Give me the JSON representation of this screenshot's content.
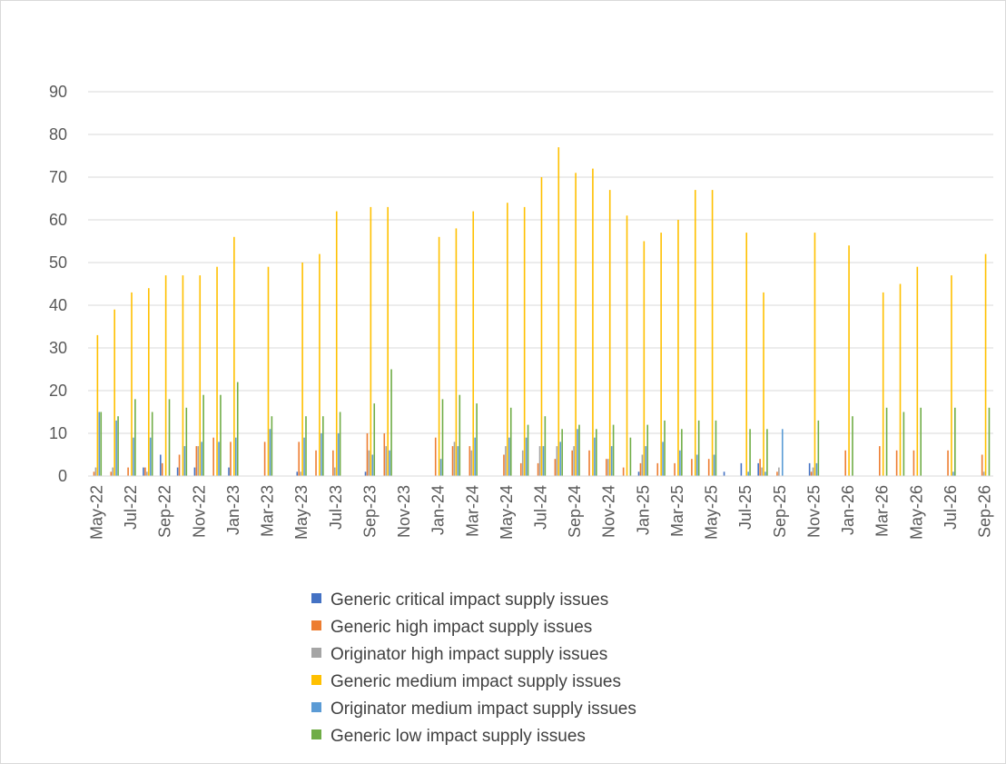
{
  "chart_data": {
    "type": "bar",
    "title": "",
    "xlabel": "",
    "ylabel": "",
    "ylim": [
      0,
      90
    ],
    "yticks": [
      0,
      10,
      20,
      30,
      40,
      50,
      60,
      70,
      80,
      90
    ],
    "grid": true,
    "legend_position": "bottom",
    "categories": [
      "May-22",
      "Jun-22",
      "Jul-22",
      "Aug-22",
      "Sep-22",
      "Oct-22",
      "Nov-22",
      "Dec-22",
      "Jan-23",
      "Feb-23",
      "Mar-23",
      "Apr-23",
      "May-23",
      "Jun-23",
      "Jul-23",
      "Aug-23",
      "Sep-23",
      "Oct-23",
      "Nov-23",
      "Dec-23",
      "Jan-24",
      "Feb-24",
      "Mar-24",
      "Apr-24",
      "May-24",
      "Jun-24",
      "Jul-24",
      "Aug-24",
      "Sep-24",
      "Oct-24",
      "Nov-24",
      "Dec-24",
      "Jan-25",
      "Feb-25",
      "Mar-25",
      "Apr-25",
      "May-25",
      "Jun-25",
      "Jul-25",
      "Aug-25",
      "Sep-25",
      "Oct-25",
      "Nov-25",
      "Dec-25",
      "Jan-26",
      "Feb-26",
      "Mar-26",
      "Apr-26",
      "May-26",
      "Jun-26",
      "Jul-26",
      "Aug-26",
      "Sep-26"
    ],
    "tick_labels": [
      "May-22",
      "Jul-22",
      "Sep-22",
      "Nov-22",
      "Jan-23",
      "Mar-23",
      "May-23",
      "Jul-23",
      "Sep-23",
      "Nov-23",
      "Jan-24",
      "Mar-24",
      "May-24",
      "Jul-24",
      "Sep-24",
      "Nov-24",
      "Jan-25",
      "Mar-25",
      "May-25",
      "Jul-25",
      "Sep-25",
      "Nov-25",
      "Jan-26",
      "Mar-26",
      "May-26",
      "Jul-26",
      "Sep-26"
    ],
    "series": [
      {
        "name": "Generic critical impact supply issues",
        "color": "#4472c4",
        "values": [
          0,
          0,
          0,
          2,
          5,
          2,
          2,
          0,
          2,
          0,
          0,
          0,
          1,
          0,
          0,
          0,
          1,
          0,
          0,
          0,
          0,
          0,
          0,
          0,
          0,
          0,
          0,
          0,
          0,
          0,
          0,
          0,
          1,
          0,
          0,
          0,
          0,
          1,
          3,
          3,
          0,
          0,
          3,
          0,
          0,
          0,
          0,
          0,
          0,
          0,
          0,
          0,
          0
        ]
      },
      {
        "name": "Generic high impact supply issues",
        "color": "#ed7d31",
        "values": [
          1,
          1,
          2,
          2,
          3,
          5,
          7,
          9,
          8,
          0,
          8,
          0,
          8,
          6,
          6,
          0,
          10,
          10,
          0,
          0,
          9,
          7,
          7,
          0,
          5,
          3,
          3,
          4,
          6,
          6,
          4,
          2,
          3,
          3,
          3,
          4,
          4,
          0,
          0,
          4,
          1,
          0,
          1,
          0,
          6,
          0,
          7,
          6,
          6,
          0,
          6,
          0,
          5
        ]
      },
      {
        "name": "Originator high impact supply issues",
        "color": "#a5a5a5",
        "values": [
          2,
          2,
          0,
          1,
          0,
          0,
          7,
          0,
          0,
          0,
          0,
          0,
          1,
          0,
          2,
          0,
          6,
          7,
          0,
          0,
          0,
          8,
          6,
          0,
          7,
          6,
          7,
          7,
          7,
          0,
          4,
          0,
          5,
          0,
          0,
          0,
          0,
          0,
          0,
          2,
          2,
          0,
          2,
          0,
          0,
          0,
          0,
          0,
          0,
          0,
          0,
          0,
          1
        ]
      },
      {
        "name": "Generic medium impact supply issues",
        "color": "#ffc000",
        "values": [
          33,
          39,
          43,
          44,
          47,
          47,
          47,
          49,
          56,
          0,
          49,
          0,
          50,
          52,
          62,
          0,
          63,
          63,
          0,
          0,
          56,
          58,
          62,
          0,
          64,
          63,
          70,
          77,
          71,
          72,
          67,
          61,
          55,
          57,
          60,
          67,
          67,
          0,
          57,
          43,
          0,
          0,
          57,
          0,
          54,
          0,
          43,
          45,
          49,
          0,
          47,
          0,
          52
        ]
      },
      {
        "name": "Originator medium impact supply issues",
        "color": "#5b9bd5",
        "values": [
          15,
          13,
          9,
          9,
          0,
          7,
          8,
          8,
          9,
          0,
          11,
          0,
          9,
          10,
          10,
          0,
          5,
          6,
          0,
          0,
          4,
          7,
          9,
          0,
          9,
          9,
          7,
          8,
          11,
          9,
          7,
          0,
          7,
          8,
          6,
          5,
          5,
          0,
          1,
          1,
          11,
          0,
          3,
          0,
          0,
          0,
          0,
          0,
          0,
          0,
          1,
          0,
          0
        ]
      },
      {
        "name": "Generic low impact supply issues",
        "color": "#70ad47",
        "values": [
          15,
          14,
          18,
          15,
          18,
          16,
          19,
          19,
          22,
          0,
          14,
          0,
          14,
          14,
          15,
          0,
          17,
          25,
          0,
          0,
          18,
          19,
          17,
          0,
          16,
          12,
          14,
          11,
          12,
          11,
          12,
          9,
          12,
          13,
          11,
          13,
          13,
          0,
          11,
          11,
          0,
          0,
          13,
          0,
          14,
          0,
          16,
          15,
          16,
          0,
          16,
          0,
          16
        ]
      }
    ]
  }
}
